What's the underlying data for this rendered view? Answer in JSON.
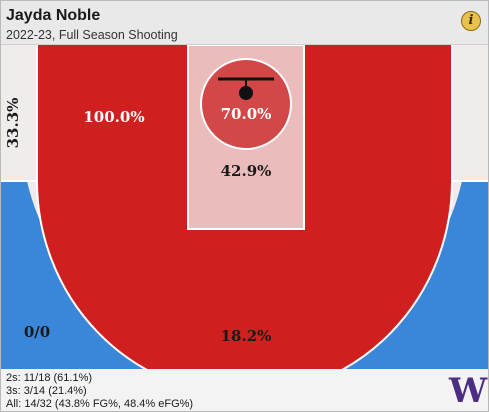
{
  "header": {
    "title": "Jayda Noble",
    "subtitle": "2022-23, Full Season Shooting",
    "info_icon": "i"
  },
  "zones": {
    "left_corner": "33.3%",
    "mid_range": "100.0%",
    "rim": "70.0%",
    "paint": "42.9%",
    "right_corner": "0/0",
    "above_break": "18.2%"
  },
  "footer": {
    "twos": "2s: 11/18 (61.1%)",
    "threes": "3s: 3/14 (21.4%)",
    "all": "All: 14/32 (43.8% FG%, 48.4% eFG%)"
  },
  "logo": "W",
  "colors": {
    "hot_red": "#d01f1f",
    "cold_blue": "#3a86d8",
    "paint_pink": "#ebbcbc",
    "rim_red": "#d24848",
    "corner_grey": "#f0ecec"
  }
}
